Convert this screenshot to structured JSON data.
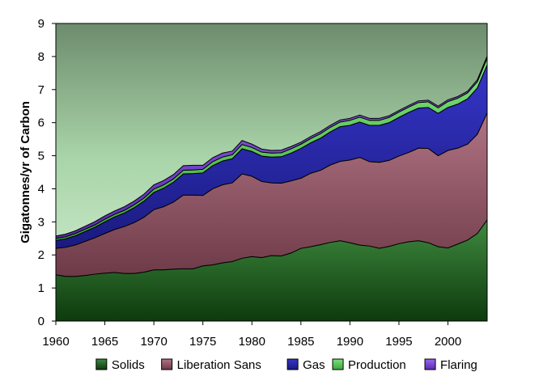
{
  "chart_data": {
    "type": "area",
    "stacked": true,
    "title": "",
    "xlabel": "",
    "ylabel": "Gigatonnes/yr of Carbon",
    "xlim": [
      1960,
      2004
    ],
    "ylim": [
      0,
      9
    ],
    "x_ticks": [
      1960,
      1965,
      1970,
      1975,
      1980,
      1985,
      1990,
      1995,
      2000
    ],
    "y_ticks": [
      0,
      1,
      2,
      3,
      4,
      5,
      6,
      7,
      8,
      9
    ],
    "grid": false,
    "legend_position": "bottom",
    "x": [
      1960,
      1961,
      1962,
      1963,
      1964,
      1965,
      1966,
      1967,
      1968,
      1969,
      1970,
      1971,
      1972,
      1973,
      1974,
      1975,
      1976,
      1977,
      1978,
      1979,
      1980,
      1981,
      1982,
      1983,
      1984,
      1985,
      1986,
      1987,
      1988,
      1989,
      1990,
      1991,
      1992,
      1993,
      1994,
      1995,
      1996,
      1997,
      1998,
      1999,
      2000,
      2001,
      2002,
      2003,
      2004
    ],
    "series": [
      {
        "name": "Solids",
        "color": "#2e6b2e",
        "values": [
          1.4,
          1.35,
          1.35,
          1.38,
          1.42,
          1.45,
          1.47,
          1.44,
          1.44,
          1.48,
          1.55,
          1.55,
          1.57,
          1.58,
          1.58,
          1.67,
          1.7,
          1.76,
          1.8,
          1.9,
          1.95,
          1.92,
          1.98,
          1.97,
          2.06,
          2.2,
          2.25,
          2.31,
          2.38,
          2.43,
          2.37,
          2.3,
          2.27,
          2.2,
          2.26,
          2.34,
          2.4,
          2.43,
          2.37,
          2.25,
          2.21,
          2.33,
          2.45,
          2.65,
          3.06
        ]
      },
      {
        "name": "Liberation Sans",
        "color": "#9b5a6a",
        "values": [
          0.8,
          0.88,
          0.95,
          1.03,
          1.1,
          1.2,
          1.3,
          1.42,
          1.54,
          1.66,
          1.82,
          1.91,
          2.03,
          2.23,
          2.23,
          2.13,
          2.3,
          2.36,
          2.38,
          2.55,
          2.43,
          2.3,
          2.2,
          2.2,
          2.18,
          2.12,
          2.22,
          2.25,
          2.34,
          2.4,
          2.5,
          2.65,
          2.55,
          2.6,
          2.6,
          2.65,
          2.7,
          2.8,
          2.85,
          2.75,
          2.95,
          2.9,
          2.9,
          3.0,
          3.24
        ]
      },
      {
        "name": "Gas",
        "color": "#2a2aa8",
        "values": [
          0.24,
          0.26,
          0.28,
          0.3,
          0.32,
          0.35,
          0.38,
          0.41,
          0.45,
          0.49,
          0.52,
          0.56,
          0.6,
          0.64,
          0.65,
          0.68,
          0.7,
          0.72,
          0.73,
          0.76,
          0.75,
          0.77,
          0.78,
          0.8,
          0.84,
          0.9,
          0.92,
          0.97,
          1.0,
          1.05,
          1.05,
          1.07,
          1.1,
          1.12,
          1.14,
          1.17,
          1.21,
          1.21,
          1.24,
          1.28,
          1.3,
          1.33,
          1.37,
          1.4,
          1.45
        ]
      },
      {
        "name": "Production",
        "color": "#5ccc5c",
        "values": [
          0.06,
          0.06,
          0.07,
          0.07,
          0.07,
          0.08,
          0.08,
          0.08,
          0.09,
          0.09,
          0.1,
          0.1,
          0.1,
          0.11,
          0.11,
          0.11,
          0.12,
          0.12,
          0.12,
          0.13,
          0.12,
          0.12,
          0.12,
          0.12,
          0.13,
          0.13,
          0.13,
          0.14,
          0.14,
          0.14,
          0.15,
          0.15,
          0.15,
          0.15,
          0.16,
          0.16,
          0.16,
          0.17,
          0.17,
          0.17,
          0.18,
          0.18,
          0.18,
          0.19,
          0.2
        ]
      },
      {
        "name": "Flaring",
        "color": "#7b3fd6",
        "values": [
          0.07,
          0.08,
          0.08,
          0.09,
          0.1,
          0.1,
          0.1,
          0.11,
          0.11,
          0.12,
          0.13,
          0.13,
          0.13,
          0.14,
          0.14,
          0.12,
          0.12,
          0.12,
          0.11,
          0.12,
          0.1,
          0.09,
          0.08,
          0.08,
          0.07,
          0.06,
          0.06,
          0.06,
          0.06,
          0.06,
          0.06,
          0.06,
          0.06,
          0.06,
          0.05,
          0.05,
          0.05,
          0.05,
          0.05,
          0.05,
          0.05,
          0.05,
          0.05,
          0.06,
          0.06
        ]
      }
    ]
  }
}
